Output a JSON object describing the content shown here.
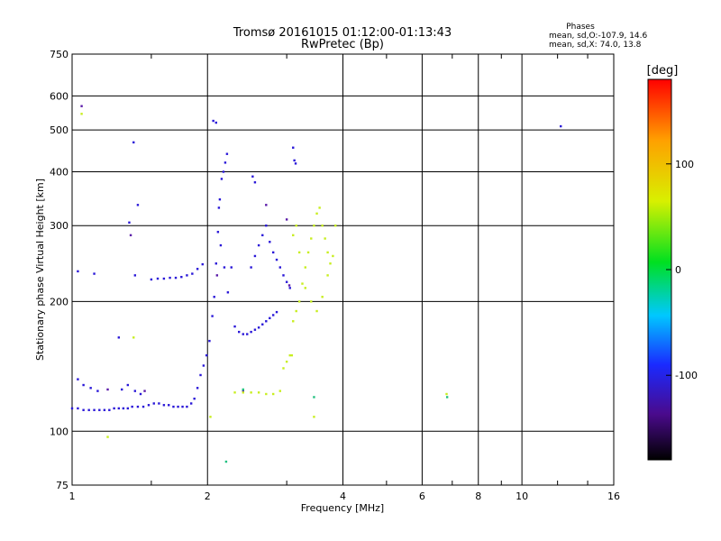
{
  "chart_data": {
    "type": "scatter",
    "title": "Tromsø 20161015 01:12:00-01:13:43",
    "subtitle": "RwPretec (Bp)",
    "xlabel": "Frequency [MHz]",
    "ylabel": "Stationary phase Virtual Height [km]",
    "x_scale": "log",
    "y_scale": "log",
    "xlim": [
      1,
      16
    ],
    "ylim": [
      75,
      750
    ],
    "x_ticks": [
      1,
      2,
      4,
      6,
      8,
      10,
      16
    ],
    "x_tick_labels": [
      "1",
      "2",
      "4",
      "6",
      "8",
      "10",
      "16"
    ],
    "y_ticks": [
      75,
      100,
      200,
      300,
      400,
      500,
      600,
      750
    ],
    "y_tick_labels": [
      "75",
      "100",
      "200",
      "300",
      "400",
      "500",
      "600",
      "750"
    ],
    "grid": true,
    "stats": {
      "heading": "Phases",
      "line_o": "mean, sd,O:-107.9, 14.6",
      "line_x": "mean, sd,X:  74.0, 13.8"
    },
    "colorbar": {
      "label": "[deg]",
      "range": [
        -180,
        180
      ],
      "ticks": [
        100,
        0,
        -100
      ],
      "tick_labels": [
        "100",
        "0",
        "-100"
      ]
    },
    "series": [
      {
        "color": "#2a18d8",
        "points": [
          [
            1.0,
            113
          ],
          [
            1.03,
            113
          ],
          [
            1.06,
            112
          ],
          [
            1.09,
            112
          ],
          [
            1.12,
            112
          ],
          [
            1.15,
            112
          ],
          [
            1.18,
            112
          ],
          [
            1.21,
            112
          ],
          [
            1.24,
            113
          ],
          [
            1.27,
            113
          ],
          [
            1.3,
            113
          ],
          [
            1.33,
            113
          ],
          [
            1.36,
            114
          ],
          [
            1.4,
            114
          ],
          [
            1.44,
            114
          ],
          [
            1.48,
            115
          ],
          [
            1.52,
            116
          ],
          [
            1.56,
            116
          ],
          [
            1.6,
            115
          ],
          [
            1.64,
            115
          ],
          [
            1.68,
            114
          ],
          [
            1.72,
            114
          ],
          [
            1.76,
            114
          ],
          [
            1.8,
            114
          ],
          [
            1.84,
            116
          ],
          [
            1.87,
            119
          ],
          [
            1.9,
            126
          ],
          [
            1.93,
            135
          ],
          [
            1.96,
            142
          ],
          [
            1.99,
            150
          ],
          [
            2.02,
            162
          ],
          [
            2.05,
            185
          ],
          [
            2.07,
            205
          ],
          [
            2.09,
            245
          ],
          [
            2.11,
            290
          ],
          [
            2.13,
            345
          ],
          [
            2.15,
            385
          ],
          [
            2.17,
            400
          ],
          [
            2.19,
            420
          ],
          [
            2.21,
            440
          ],
          [
            2.06,
            525
          ],
          [
            2.09,
            520
          ],
          [
            2.12,
            330
          ],
          [
            2.14,
            270
          ],
          [
            2.18,
            240
          ],
          [
            2.22,
            210
          ],
          [
            2.26,
            240
          ],
          [
            1.5,
            225
          ],
          [
            1.55,
            226
          ],
          [
            1.6,
            226
          ],
          [
            1.65,
            227
          ],
          [
            1.7,
            227
          ],
          [
            1.75,
            228
          ],
          [
            1.8,
            230
          ],
          [
            1.85,
            232
          ],
          [
            1.9,
            238
          ],
          [
            1.95,
            244
          ],
          [
            2.3,
            175
          ],
          [
            2.35,
            170
          ],
          [
            2.4,
            168
          ],
          [
            2.45,
            168
          ],
          [
            2.5,
            170
          ],
          [
            2.55,
            172
          ],
          [
            2.6,
            174
          ],
          [
            2.65,
            177
          ],
          [
            2.7,
            180
          ],
          [
            2.75,
            183
          ],
          [
            2.8,
            186
          ],
          [
            2.85,
            189
          ],
          [
            2.5,
            240
          ],
          [
            2.55,
            255
          ],
          [
            2.6,
            270
          ],
          [
            2.65,
            285
          ],
          [
            2.7,
            300
          ],
          [
            2.75,
            275
          ],
          [
            2.8,
            260
          ],
          [
            2.85,
            250
          ],
          [
            2.9,
            240
          ],
          [
            2.95,
            230
          ],
          [
            3.0,
            222
          ],
          [
            3.05,
            215
          ],
          [
            2.52,
            390
          ],
          [
            2.55,
            378
          ],
          [
            3.1,
            455
          ],
          [
            3.12,
            425
          ],
          [
            3.14,
            418
          ],
          [
            1.03,
            132
          ],
          [
            1.06,
            128
          ],
          [
            1.1,
            126
          ],
          [
            1.14,
            124
          ],
          [
            1.03,
            235
          ],
          [
            1.12,
            232
          ],
          [
            1.37,
            468
          ],
          [
            1.34,
            305
          ],
          [
            1.4,
            335
          ],
          [
            1.38,
            230
          ],
          [
            1.27,
            165
          ],
          [
            1.33,
            128
          ],
          [
            1.38,
            124
          ],
          [
            1.42,
            122
          ],
          [
            1.29,
            125
          ],
          [
            12.2,
            510
          ]
        ]
      },
      {
        "color": "#5a1aa8",
        "points": [
          [
            1.05,
            568
          ],
          [
            1.35,
            285
          ],
          [
            1.45,
            124
          ],
          [
            2.4,
            124
          ],
          [
            2.7,
            335
          ],
          [
            3.0,
            310
          ],
          [
            3.04,
            218
          ],
          [
            1.2,
            125
          ],
          [
            2.1,
            230
          ]
        ]
      },
      {
        "color": "#c8ee20",
        "points": [
          [
            2.3,
            123
          ],
          [
            2.4,
            123
          ],
          [
            2.5,
            123
          ],
          [
            2.6,
            123
          ],
          [
            2.7,
            122
          ],
          [
            2.8,
            122
          ],
          [
            2.9,
            124
          ],
          [
            2.95,
            140
          ],
          [
            3.0,
            145
          ],
          [
            3.05,
            150
          ],
          [
            3.08,
            150
          ],
          [
            3.1,
            180
          ],
          [
            3.15,
            190
          ],
          [
            3.2,
            200
          ],
          [
            3.25,
            220
          ],
          [
            3.3,
            240
          ],
          [
            3.35,
            260
          ],
          [
            3.4,
            280
          ],
          [
            3.45,
            300
          ],
          [
            3.5,
            320
          ],
          [
            3.55,
            330
          ],
          [
            3.6,
            300
          ],
          [
            3.65,
            280
          ],
          [
            3.7,
            260
          ],
          [
            3.75,
            245
          ],
          [
            3.8,
            255
          ],
          [
            3.85,
            300
          ],
          [
            3.2,
            260
          ],
          [
            3.15,
            300
          ],
          [
            3.1,
            285
          ],
          [
            3.3,
            215
          ],
          [
            3.4,
            200
          ],
          [
            3.5,
            190
          ],
          [
            3.6,
            205
          ],
          [
            3.7,
            230
          ],
          [
            6.8,
            122
          ],
          [
            1.05,
            545
          ],
          [
            1.2,
            97
          ],
          [
            2.03,
            108
          ],
          [
            3.45,
            108
          ],
          [
            1.37,
            165
          ]
        ]
      },
      {
        "color": "#22c080",
        "points": [
          [
            2.2,
            85
          ],
          [
            6.82,
            120
          ],
          [
            3.45,
            120
          ],
          [
            2.4,
            125
          ]
        ]
      }
    ]
  }
}
